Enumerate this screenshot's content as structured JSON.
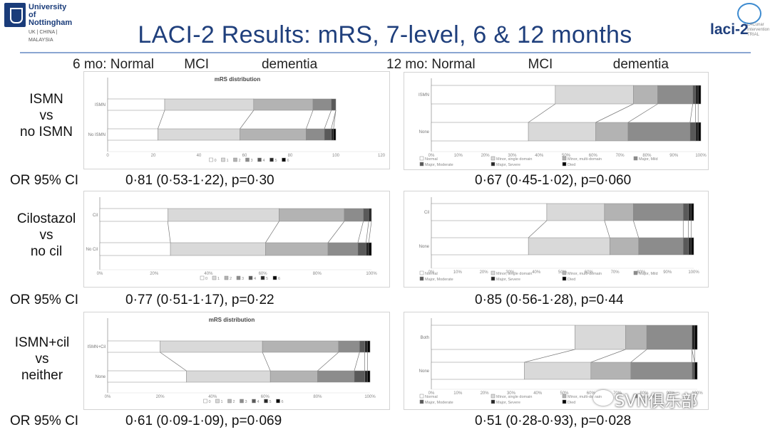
{
  "header": {
    "uon_logo_line1": "University of",
    "uon_logo_line2": "Nottingham",
    "uon_logo_sub": "UK | CHINA | MALAYSIA",
    "title": "LACI-2 Results: mRS, 7-level, 6 & 12 months",
    "laci_logo": "laci-2",
    "laci_small": "LACunar\nIntervention\nTRIAL"
  },
  "columns": {
    "six_month": "6 mo: Normal        MCI              dementia",
    "twelve_month": "12 mo: Normal              MCI                dementia"
  },
  "rows": [
    {
      "label_lines": [
        "ISMN",
        "vs",
        "no ISMN"
      ],
      "or_label": "OR 95% CI",
      "or_6mo": "0·81 (0·53-1·22), p=0·30",
      "or_12mo": "0·67 (0·45-1·02), p=0·060"
    },
    {
      "label_lines": [
        "Cilostazol",
        "vs",
        "no cil"
      ],
      "or_label": "OR 95% CI",
      "or_6mo": "0·77 (0·51-1·17), p=0·22",
      "or_12mo": "0·85 (0·56-1·28), p=0·44"
    },
    {
      "label_lines": [
        "ISMN+cil",
        "vs",
        "neither"
      ],
      "or_label": "OR 95% CI",
      "or_6mo": "0·61 (0·09-1·09), p=0·069",
      "or_12mo": "0·51 (0·28-0·93), p=0·028"
    }
  ],
  "palette": [
    "#ffffff",
    "#d9d9d9",
    "#b3b3b3",
    "#8c8c8c",
    "#595959",
    "#262626",
    "#000000"
  ],
  "watermark": "SVN俱乐部",
  "chart_data": [
    {
      "type": "bar",
      "title": "mRS distribution",
      "orientation": "horizontal-stacked",
      "categories": [
        "ISMN",
        "No ISMN"
      ],
      "xlim": [
        0,
        120
      ],
      "xticks": [
        "0",
        "20",
        "40",
        "60",
        "80",
        "100",
        "120"
      ],
      "legend": [
        "0",
        "1",
        "2",
        "3",
        "4",
        "5",
        "6"
      ],
      "series": [
        {
          "name": "0",
          "values": [
            25,
            22
          ]
        },
        {
          "name": "1",
          "values": [
            39,
            36
          ]
        },
        {
          "name": "2",
          "values": [
            26,
            29
          ]
        },
        {
          "name": "3",
          "values": [
            8,
            8
          ]
        },
        {
          "name": "4",
          "values": [
            2,
            3
          ]
        },
        {
          "name": "5",
          "values": [
            0,
            1
          ]
        },
        {
          "name": "6",
          "values": [
            0,
            1
          ]
        }
      ]
    },
    {
      "type": "bar",
      "title": "",
      "orientation": "horizontal-stacked",
      "categories": [
        "ISMN",
        "None"
      ],
      "xlim": [
        0,
        100
      ],
      "xticks": [
        "0%",
        "10%",
        "20%",
        "30%",
        "40%",
        "50%",
        "60%",
        "70%",
        "80%",
        "90%",
        "100%"
      ],
      "legend": [
        "Normal",
        "Minor, single domain",
        "Minor, multi-domain",
        "Major, Mild",
        "Major, Moderate",
        "Major, Severe",
        "Died"
      ],
      "series": [
        {
          "name": "Normal",
          "values": [
            46,
            36
          ]
        },
        {
          "name": "Minor, single domain",
          "values": [
            29,
            25
          ]
        },
        {
          "name": "Minor, multi-domain",
          "values": [
            9,
            12
          ]
        },
        {
          "name": "Major, Mild",
          "values": [
            13,
            23
          ]
        },
        {
          "name": "Major, Moderate",
          "values": [
            1,
            2
          ]
        },
        {
          "name": "Major, Severe",
          "values": [
            1,
            1
          ]
        },
        {
          "name": "Died",
          "values": [
            1,
            1
          ]
        }
      ]
    },
    {
      "type": "bar",
      "title": "",
      "orientation": "horizontal-stacked",
      "categories": [
        "Cil",
        "No Cil"
      ],
      "xlim": [
        0,
        100
      ],
      "xticks": [
        "0%",
        "20%",
        "40%",
        "60%",
        "80%",
        "100%"
      ],
      "legend": [
        "0",
        "1",
        "2",
        "3",
        "4",
        "5",
        "6"
      ],
      "series": [
        {
          "name": "0",
          "values": [
            25,
            26
          ]
        },
        {
          "name": "1",
          "values": [
            41,
            35
          ]
        },
        {
          "name": "2",
          "values": [
            24,
            23
          ]
        },
        {
          "name": "3",
          "values": [
            7,
            11
          ]
        },
        {
          "name": "4",
          "values": [
            2,
            3
          ]
        },
        {
          "name": "5",
          "values": [
            1,
            1
          ]
        },
        {
          "name": "6",
          "values": [
            0,
            1
          ]
        }
      ]
    },
    {
      "type": "bar",
      "title": "",
      "orientation": "horizontal-stacked",
      "categories": [
        "Cil",
        "None"
      ],
      "xlim": [
        0,
        100
      ],
      "xticks": [
        "0%",
        "10%",
        "20%",
        "30%",
        "40%",
        "50%",
        "60%",
        "70%",
        "80%",
        "90%",
        "100%"
      ],
      "legend": [
        "Normal",
        "Minor, single domain",
        "Minor, multi-domain",
        "Major, Mild",
        "Major, Moderate",
        "Major, Severe",
        "Died"
      ],
      "series": [
        {
          "name": "Normal",
          "values": [
            44,
            37
          ]
        },
        {
          "name": "Minor, single domain",
          "values": [
            22,
            31
          ]
        },
        {
          "name": "Minor, multi-domain",
          "values": [
            11,
            11
          ]
        },
        {
          "name": "Major, Mild",
          "values": [
            19,
            17
          ]
        },
        {
          "name": "Major, Moderate",
          "values": [
            2,
            2
          ]
        },
        {
          "name": "Major, Severe",
          "values": [
            1,
            1
          ]
        },
        {
          "name": "Died",
          "values": [
            1,
            1
          ]
        }
      ]
    },
    {
      "type": "bar",
      "title": "mRS distribution",
      "orientation": "horizontal-stacked",
      "categories": [
        "ISMN+Cil",
        "None"
      ],
      "xlim": [
        0,
        100
      ],
      "xticks": [
        "0%",
        "20%",
        "40%",
        "60%",
        "80%",
        "100%"
      ],
      "legend": [
        "0",
        "1",
        "2",
        "3",
        "4",
        "5",
        "6"
      ],
      "series": [
        {
          "name": "0",
          "values": [
            20,
            30
          ]
        },
        {
          "name": "1",
          "values": [
            39,
            32
          ]
        },
        {
          "name": "2",
          "values": [
            29,
            18
          ]
        },
        {
          "name": "3",
          "values": [
            8,
            14
          ]
        },
        {
          "name": "4",
          "values": [
            2,
            4
          ]
        },
        {
          "name": "5",
          "values": [
            1,
            1
          ]
        },
        {
          "name": "6",
          "values": [
            1,
            1
          ]
        }
      ]
    },
    {
      "type": "bar",
      "title": "",
      "orientation": "horizontal-stacked",
      "categories": [
        "Both",
        "None"
      ],
      "xlim": [
        0,
        100
      ],
      "xticks": [
        "0%",
        "10%",
        "20%",
        "30%",
        "40%",
        "50%",
        "60%",
        "70%",
        "80%",
        "90%",
        "100%"
      ],
      "legend": [
        "Normal",
        "Minor, single domain",
        "Minor, multi-domain",
        "Major, Mild",
        "Major, Moderate",
        "Major, Severe",
        "Died"
      ],
      "series": [
        {
          "name": "Normal",
          "values": [
            54,
            35
          ]
        },
        {
          "name": "Minor, single domain",
          "values": [
            19,
            25
          ]
        },
        {
          "name": "Minor, multi-domain",
          "values": [
            8,
            15
          ]
        },
        {
          "name": "Major, Mild",
          "values": [
            17,
            23
          ]
        },
        {
          "name": "Major, Moderate",
          "values": [
            0,
            1
          ]
        },
        {
          "name": "Major, Severe",
          "values": [
            1,
            0
          ]
        },
        {
          "name": "Died",
          "values": [
            1,
            1
          ]
        }
      ]
    }
  ]
}
